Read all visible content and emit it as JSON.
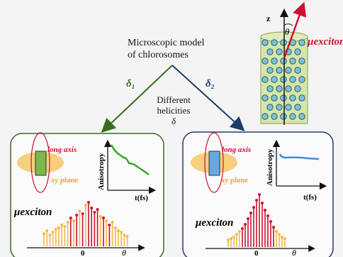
{
  "title": {
    "line1": "Microscopic model",
    "line2": "of chlorosomes"
  },
  "arrows": {
    "delta1": "δ₁",
    "delta2": "δ₂"
  },
  "center": {
    "line1": "Different",
    "line2": "helicities",
    "line3": "δ"
  },
  "inset": {
    "z_label": "z",
    "theta_label": "θ",
    "mu_label": "μexciton"
  },
  "panels": [
    {
      "long_axis": "long axis",
      "xy_plane": "xy plane",
      "ylabel": "Anisotropy",
      "xlabel": "t(fs)",
      "mu_label": "μexciton",
      "zero": "0",
      "theta": "θ",
      "border_color": "#3a6b2a",
      "curve_color": "#33aa22"
    },
    {
      "long_axis": "long axis",
      "xy_plane": "xy plane",
      "ylabel": "Anisotropy",
      "xlabel": "t(fs)",
      "mu_label": "μexciton",
      "zero": "0",
      "theta": "θ",
      "border_color": "#2a3c66",
      "curve_color": "#4488dd"
    }
  ],
  "colors": {
    "accent_red": "#cc1133",
    "delta1": "#3b6b1f",
    "delta2": "#1f3b66",
    "orange": "#f5b84a",
    "label_red": "#d01030",
    "label_orange": "#f0a020"
  }
}
